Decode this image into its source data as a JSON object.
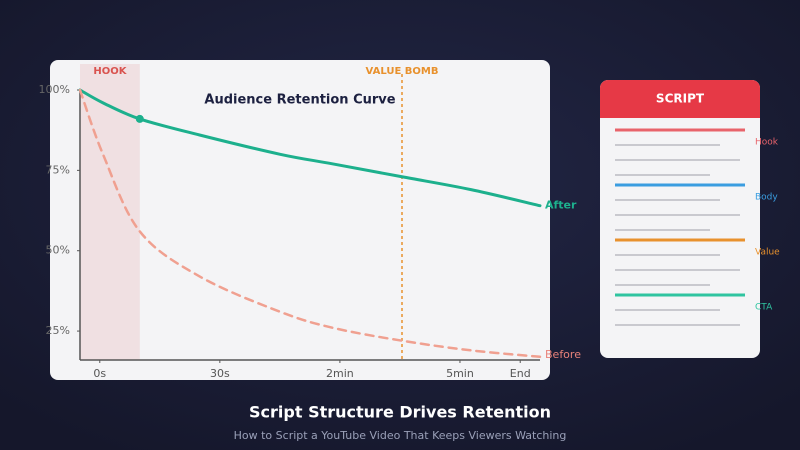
{
  "chart_data": {
    "type": "line",
    "title": "Audience Retention Curve",
    "x": [
      0,
      5,
      13,
      26,
      43.5,
      55,
      70,
      85,
      100
    ],
    "series": [
      {
        "name": "After",
        "color": "#1db08d",
        "dash": false,
        "values": [
          100,
          96,
          91,
          86,
          80,
          77,
          73,
          69,
          64
        ]
      },
      {
        "name": "Before",
        "color": "#f0a090",
        "dash": true,
        "values": [
          100,
          80,
          56,
          42,
          31,
          26,
          22,
          19,
          17
        ]
      }
    ],
    "xlim": [
      0,
      100
    ],
    "xticks": [
      {
        "value": 4.3,
        "label": "0s"
      },
      {
        "value": 30.4,
        "label": "30s"
      },
      {
        "value": 56.5,
        "label": "2min"
      },
      {
        "value": 82.6,
        "label": "5min"
      },
      {
        "value": 95.7,
        "label": "End"
      }
    ],
    "ylim": [
      16,
      100
    ],
    "yticks": [
      {
        "value": 100,
        "label": "100%"
      },
      {
        "value": 75,
        "label": "75%"
      },
      {
        "value": 50,
        "label": "50%"
      },
      {
        "value": 25,
        "label": "25%"
      }
    ],
    "annotations": [
      {
        "text": "HOOK",
        "x": [
          0,
          13
        ],
        "color": "#d9534f"
      },
      {
        "text": "VALUE BOMB",
        "x": 70,
        "color": "#e8912d"
      }
    ]
  },
  "script_card": {
    "title": "SCRIPT",
    "sections": [
      {
        "label": "Hook",
        "color": "#e8636b"
      },
      {
        "label": "Body",
        "color": "#3a9de0"
      },
      {
        "label": "Value",
        "color": "#e8912d"
      },
      {
        "label": "CTA",
        "color": "#2fc4a0"
      }
    ]
  },
  "caption": {
    "title": "Script Structure Drives Retention",
    "subtitle": "How to Script a YouTube Video That Keeps Viewers Watching"
  }
}
